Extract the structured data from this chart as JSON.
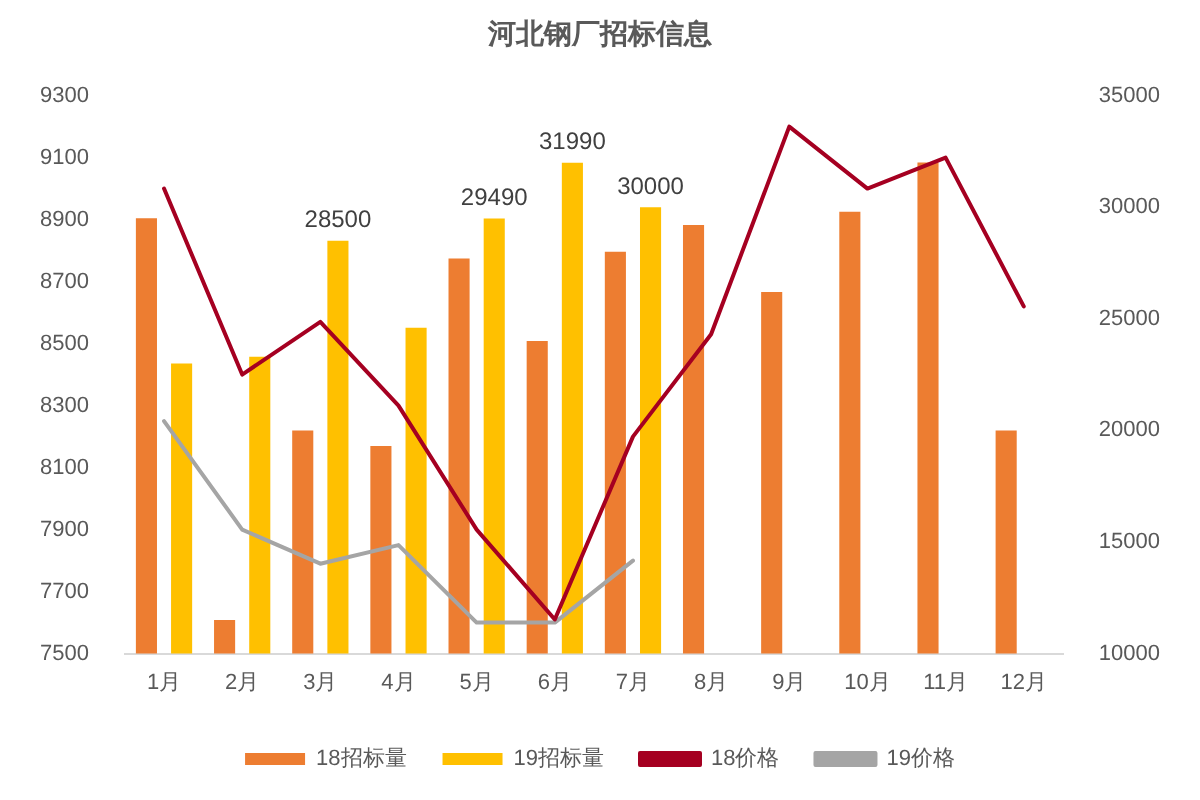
{
  "chart_data": {
    "type": "bar",
    "title": "河北钢厂招标信息",
    "categories": [
      "1月",
      "2月",
      "3月",
      "4月",
      "5月",
      "6月",
      "7月",
      "8月",
      "9月",
      "10月",
      "11月",
      "12月"
    ],
    "series": [
      {
        "name": "18招标量",
        "axis": "y2",
        "color": "#ed7d31",
        "values": [
          29500,
          11500,
          20000,
          19300,
          27700,
          24000,
          28000,
          29200,
          26200,
          29800,
          32000,
          20000
        ]
      },
      {
        "name": "19招标量",
        "axis": "y2",
        "color": "#ffc000",
        "values": [
          23000,
          23300,
          28500,
          24600,
          29490,
          31990,
          30000,
          null,
          null,
          null,
          null,
          null
        ],
        "value_labels": [
          null,
          null,
          "28500",
          null,
          "29490",
          "31990",
          "30000",
          null,
          null,
          null,
          null,
          null
        ]
      },
      {
        "name": "18价格",
        "type": "line",
        "color": "#a50021",
        "values": [
          9000,
          8400,
          8570,
          8300,
          7900,
          7610,
          8200,
          8530,
          9200,
          9000,
          9100,
          8620
        ]
      },
      {
        "name": "19价格",
        "type": "line",
        "color": "#a5a5a5",
        "values": [
          8250,
          7900,
          7790,
          7850,
          7600,
          7600,
          7800,
          null,
          null,
          null,
          null,
          null
        ]
      }
    ],
    "ylim": [
      7500,
      9300
    ],
    "yticks": [
      7500,
      7700,
      7900,
      8100,
      8300,
      8500,
      8700,
      8900,
      9100,
      9300
    ],
    "y2lim": [
      10000,
      35000
    ],
    "y2ticks": [
      10000,
      15000,
      20000,
      25000,
      30000,
      35000
    ],
    "legend": "bottom",
    "marker": "none"
  }
}
